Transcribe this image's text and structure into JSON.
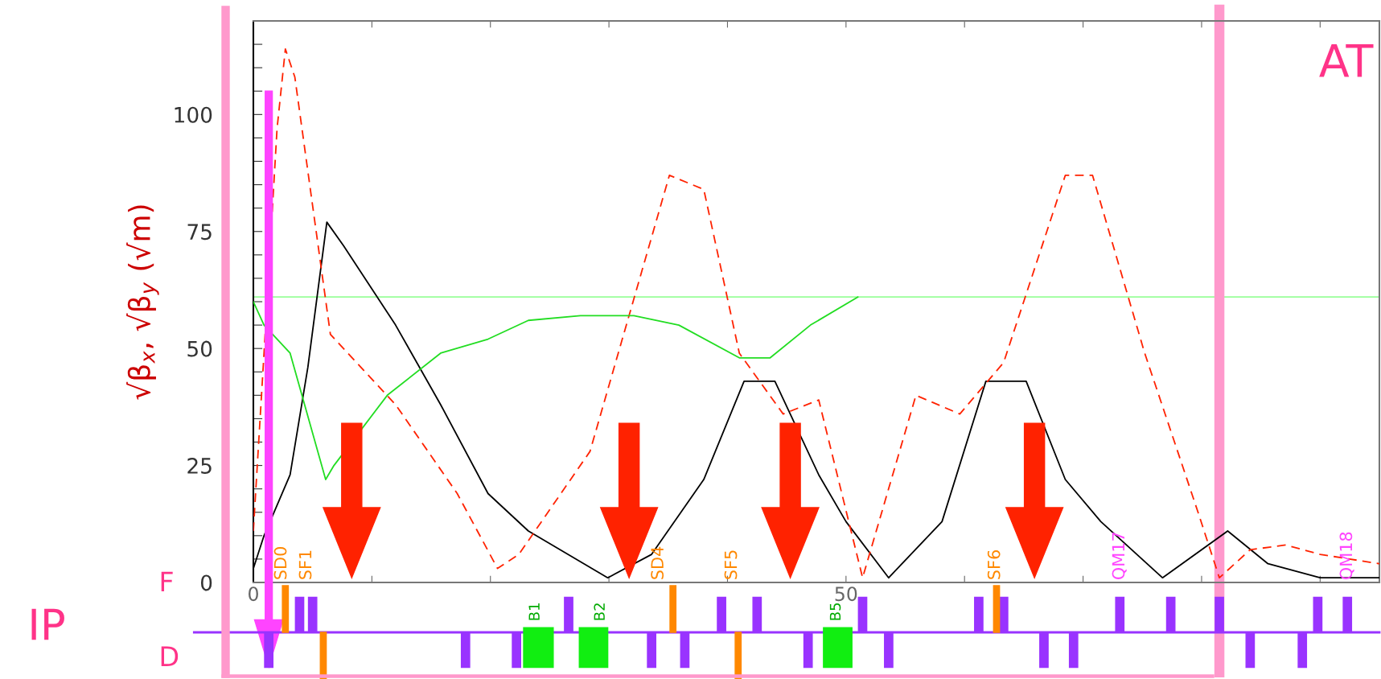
{
  "chart_data": {
    "type": "line",
    "ylabel": "√β$_{x}$, √β$_{y}$ (√m)",
    "xlim": [
      0,
      95
    ],
    "ylim": [
      0,
      120
    ],
    "xticks": [
      0,
      {
        "value": 10,
        "label": null
      },
      {
        "value": 20,
        "label": null
      },
      {
        "value": 30,
        "label": null
      },
      {
        "value": 40,
        "label": null
      },
      50,
      {
        "value": 60,
        "label": null
      },
      {
        "value": 70,
        "label": null
      },
      {
        "value": 80,
        "label": null
      },
      {
        "value": 90,
        "label": null
      }
    ],
    "yticks": [
      0,
      {
        "value": 5,
        "label": null
      },
      {
        "value": 10,
        "label": null
      },
      {
        "value": 15,
        "label": null
      },
      {
        "value": 20,
        "label": null
      },
      25,
      {
        "value": 30,
        "label": null
      },
      {
        "value": 35,
        "label": null
      },
      {
        "value": 40,
        "label": null
      },
      {
        "value": 45,
        "label": null
      },
      50,
      {
        "value": 55,
        "label": null
      },
      {
        "value": 60,
        "label": null
      },
      {
        "value": 65,
        "label": null
      },
      {
        "value": 70,
        "label": null
      },
      75,
      {
        "value": 80,
        "label": null
      },
      {
        "value": 85,
        "label": null
      },
      {
        "value": 90,
        "label": null
      },
      {
        "value": 95,
        "label": null
      },
      100,
      {
        "value": 105,
        "label": null
      },
      {
        "value": 110,
        "label": null
      },
      {
        "value": 115,
        "label": null
      }
    ],
    "grid": false,
    "legend": false,
    "marker": "none",
    "series": [
      {
        "color": "#000000",
        "line_style": "solid",
        "x": [
          0,
          0.9,
          3.1,
          4.6,
          6.2,
          7.6,
          12,
          15.8,
          19.8,
          23.2,
          29.9,
          33.6,
          38,
          41.4,
          44,
          47.7,
          50,
          53.6,
          58.1,
          61.8,
          65.2,
          68.5,
          71.5,
          76.7,
          82.2,
          85.6,
          90,
          95
        ],
        "values": [
          3,
          10,
          23,
          46,
          77,
          72,
          55,
          38,
          19,
          11,
          1,
          6,
          22,
          43,
          43,
          23,
          13,
          1,
          13,
          43,
          43,
          22,
          13,
          1,
          11,
          4,
          1,
          1
        ]
      },
      {
        "color": "#ff2200",
        "line_style": "dashed",
        "x": [
          0,
          0.9,
          2,
          2.7,
          3.5,
          6.5,
          12,
          17.2,
          20.6,
          22.4,
          28.4,
          35.1,
          38,
          41,
          44.7,
          47.7,
          51.4,
          55.9,
          59.6,
          63.3,
          68.5,
          70.8,
          75.2,
          79.7,
          81.5,
          84.1,
          87.1,
          90,
          95
        ],
        "values": [
          11,
          49,
          97,
          114,
          108,
          53,
          38,
          19,
          3,
          6,
          28,
          87,
          84,
          49,
          36,
          39,
          1,
          40,
          36,
          47,
          87,
          87,
          49,
          15,
          1,
          7,
          8,
          6,
          4
        ]
      },
      {
        "color": "#22dd22",
        "line_style": "solid",
        "x": [
          0,
          0.9,
          3.1,
          6.1,
          6.8,
          11.3,
          15.8,
          19.8,
          23.2,
          27.6,
          32.1,
          35.9,
          41,
          43.6,
          47,
          51
        ],
        "values": [
          60,
          55,
          49,
          22,
          25,
          40,
          49,
          52,
          56,
          57,
          57,
          55,
          48,
          48,
          55,
          61
        ]
      }
    ],
    "ref_lines": [
      {
        "axis": "y",
        "value": 61,
        "color": "#99ff99",
        "line_style": "solid"
      },
      {
        "axis": "x",
        "value": 81.5,
        "color": "#ff99cc",
        "line_style": "solid"
      }
    ],
    "annotations": [
      "IP",
      "F",
      "D",
      "AT",
      "SD0",
      "SF1",
      "B1",
      "B2",
      "SD4",
      "SF5",
      "B5",
      "SF6",
      "QM17",
      "QM18"
    ]
  }
}
